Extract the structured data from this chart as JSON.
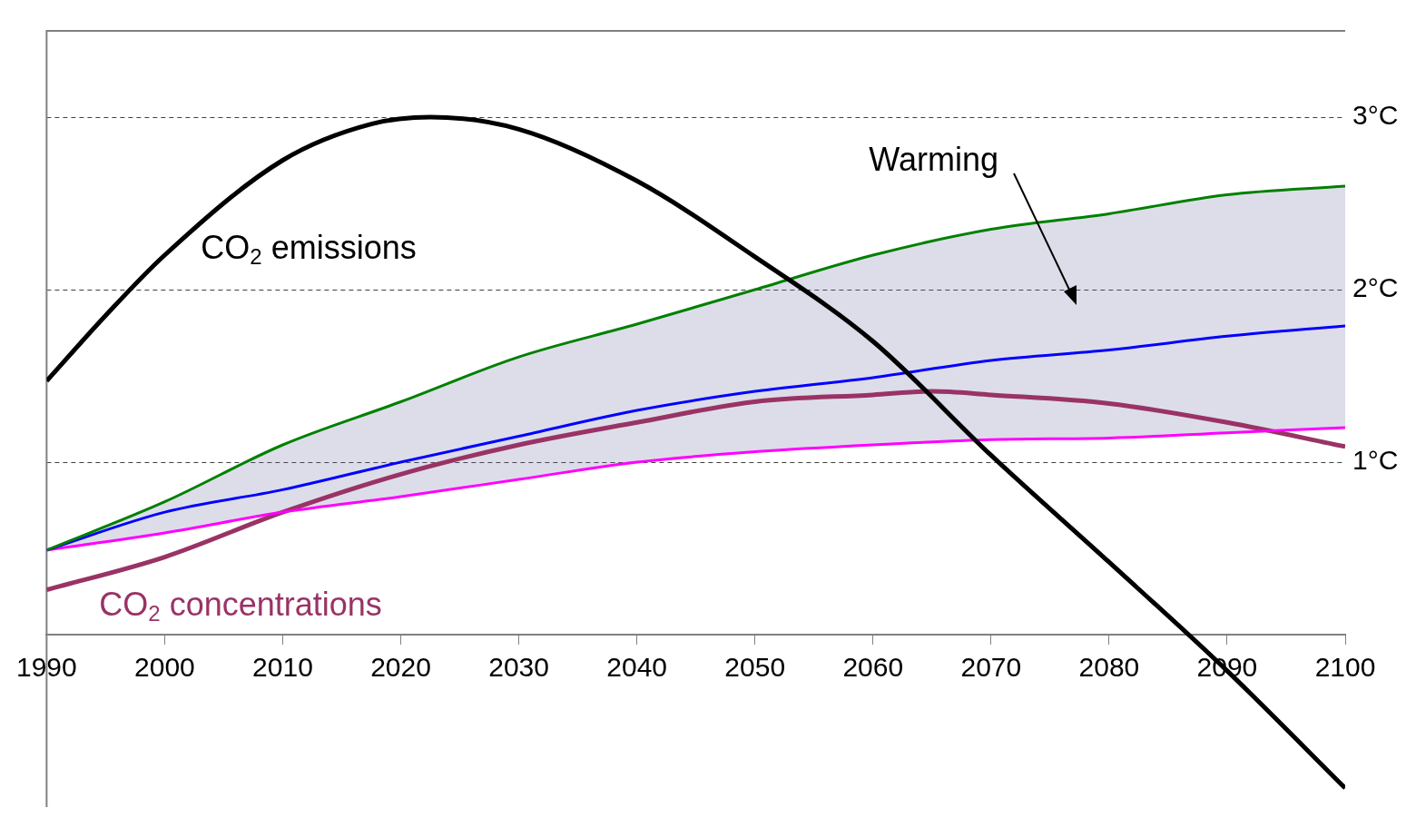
{
  "chart_data": {
    "type": "line",
    "xlim": [
      1990,
      2100
    ],
    "xticks": [
      1990,
      2000,
      2010,
      2020,
      2030,
      2040,
      2050,
      2060,
      2070,
      2080,
      2090,
      2100
    ],
    "ylim": [
      -1,
      3.5
    ],
    "yticks": [
      {
        "value": 1,
        "label": "1°C"
      },
      {
        "value": 2,
        "label": "2°C"
      },
      {
        "value": 3,
        "label": "3°C"
      }
    ],
    "grid": "y",
    "legend": false,
    "marker": "none",
    "annotations": [
      "Warming"
    ],
    "series": [
      {
        "name": "CO$_{2}$ emissions",
        "color": "#000000",
        "x": [
          1990,
          1995,
          2000,
          2010,
          2017.5,
          2022.5,
          2030,
          2040,
          2050,
          2060,
          2070,
          2080,
          2090,
          2100
        ],
        "values": [
          1.47,
          1.85,
          2.2,
          2.75,
          2.96,
          3.0,
          2.93,
          2.63,
          2.19,
          1.7,
          1.04,
          0.42,
          -0.21,
          -0.89
        ]
      },
      {
        "color": "#008000",
        "x": [
          1990,
          2000,
          2010,
          2020,
          2030,
          2040,
          2050,
          2060,
          2070,
          2080,
          2090,
          2100
        ],
        "values": [
          0.49,
          0.77,
          1.1,
          1.35,
          1.61,
          1.8,
          2.0,
          2.2,
          2.35,
          2.44,
          2.55,
          2.6
        ]
      },
      {
        "color": "#0000ff",
        "x": [
          1990,
          2000,
          2010,
          2020,
          2030,
          2040,
          2050,
          2060,
          2070,
          2080,
          2090,
          2100
        ],
        "values": [
          0.49,
          0.71,
          0.84,
          1.0,
          1.15,
          1.3,
          1.41,
          1.49,
          1.59,
          1.65,
          1.73,
          1.79
        ],
        "lower": [
          0.49,
          0.59,
          0.71,
          0.8,
          0.9,
          1.0,
          1.06,
          1.1,
          1.13,
          1.14,
          1.17,
          1.2
        ],
        "upper": [
          0.49,
          0.77,
          1.1,
          1.35,
          1.61,
          1.8,
          2.0,
          2.2,
          2.35,
          2.44,
          2.55,
          2.6
        ]
      },
      {
        "color": "#ff00ff",
        "x": [
          1990,
          2000,
          2010,
          2020,
          2030,
          2040,
          2050,
          2060,
          2070,
          2080,
          2090,
          2100
        ],
        "values": [
          0.49,
          0.59,
          0.71,
          0.8,
          0.9,
          1.0,
          1.06,
          1.1,
          1.13,
          1.14,
          1.17,
          1.2
        ]
      },
      {
        "name": "CO$_{2}$ concentrations",
        "color": "#993366",
        "x": [
          1990,
          2000,
          2010,
          2020,
          2030,
          2040,
          2050,
          2060,
          2065,
          2070,
          2080,
          2090,
          2100
        ],
        "values": [
          0.26,
          0.45,
          0.71,
          0.93,
          1.1,
          1.23,
          1.35,
          1.39,
          1.41,
          1.39,
          1.34,
          1.23,
          1.09
        ]
      }
    ]
  }
}
